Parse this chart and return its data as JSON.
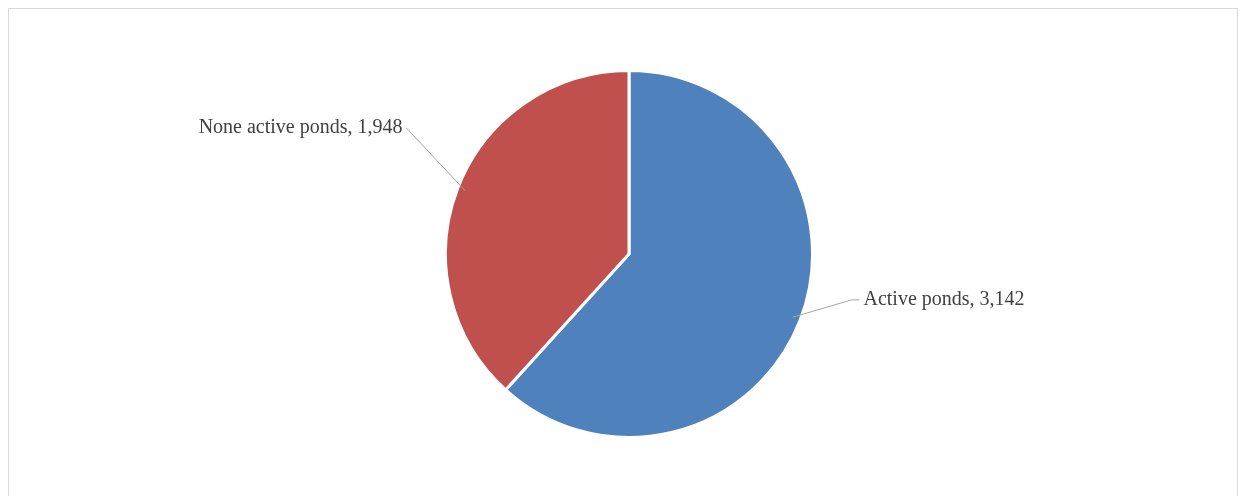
{
  "chart_data": {
    "type": "pie",
    "categories": [
      "Active ponds",
      "None active ponds"
    ],
    "values": [
      3142,
      1948
    ],
    "value_labels": [
      "3,142",
      "1,948"
    ],
    "colors": [
      "#4f81bd",
      "#c0504d"
    ],
    "legend": false
  }
}
